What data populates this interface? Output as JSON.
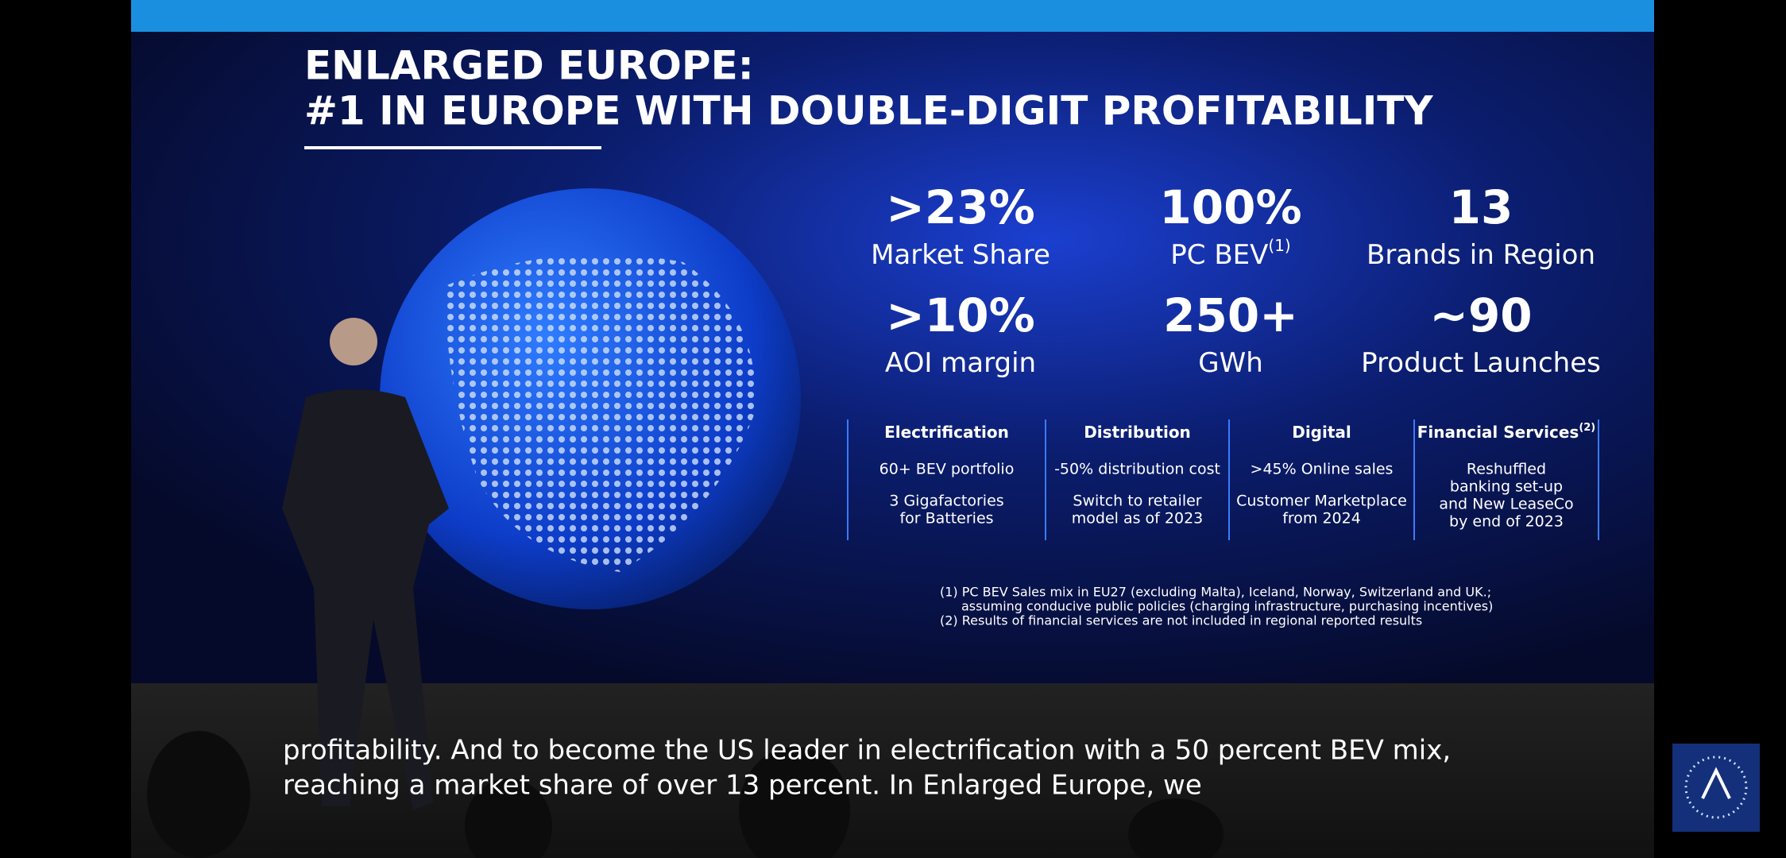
{
  "slide": {
    "title": [
      "ENLARGED EUROPE:",
      "#1 IN EUROPE WITH DOUBLE-DIGIT PROFITABILITY"
    ],
    "stats": [
      {
        "value": ">23%",
        "label": "Market Share"
      },
      {
        "value": "100%",
        "label": "PC BEV",
        "note": "(1)"
      },
      {
        "value": "13",
        "label": "Brands in Region"
      },
      {
        "value": ">10%",
        "label": "AOI margin"
      },
      {
        "value": "250+",
        "label": "GWh"
      },
      {
        "value": "~90",
        "label": "Product Launches"
      }
    ],
    "columns": [
      {
        "heading": "Electrification",
        "items": [
          [
            "60+ BEV portfolio"
          ],
          [
            "3 Gigafactories",
            "for Batteries"
          ]
        ]
      },
      {
        "heading": "Distribution",
        "items": [
          [
            "-50% distribution cost"
          ],
          [
            "Switch to retailer",
            "model as of 2023"
          ]
        ]
      },
      {
        "heading": "Digital",
        "items": [
          [
            ">45% Online sales"
          ],
          [
            "Customer Marketplace",
            "from 2024"
          ]
        ]
      },
      {
        "heading": "Financial Services",
        "note": "(2)",
        "items": [
          [
            "Reshuffled",
            "banking set-up",
            "and New LeaseCo",
            "by end of 2023"
          ]
        ]
      }
    ],
    "footnotes": [
      "(1) PC BEV Sales mix in EU27 (excluding Malta), Iceland, Norway, Switzerland and UK.;",
      "assuming conducive public policies (charging infrastructure, purchasing incentives)",
      "(2) Results of financial services are not included in regional reported results"
    ]
  },
  "subtitle": [
    "profitability. And to become the US leader in electrification with a 50 percent BEV mix,",
    "reaching a market share of over 13 percent. In Enlarged Europe, we"
  ]
}
